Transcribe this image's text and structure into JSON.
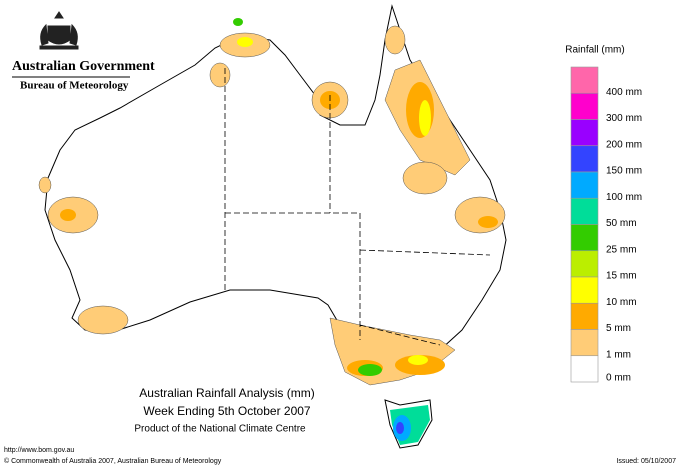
{
  "header": {
    "government": "Australian Government",
    "agency": "Bureau of Meteorology"
  },
  "legend": {
    "title": "Rainfall (mm)",
    "items": [
      {
        "label": "400 mm",
        "color": "#ff66aa"
      },
      {
        "label": "300 mm",
        "color": "#ff00cc"
      },
      {
        "label": "200 mm",
        "color": "#9900ff"
      },
      {
        "label": "150 mm",
        "color": "#3344ff"
      },
      {
        "label": "100 mm",
        "color": "#00aaff"
      },
      {
        "label": "50 mm",
        "color": "#00dd99"
      },
      {
        "label": "25 mm",
        "color": "#33cc00"
      },
      {
        "label": "15 mm",
        "color": "#bbee00"
      },
      {
        "label": "10 mm",
        "color": "#ffff00"
      },
      {
        "label": "5 mm",
        "color": "#ffaa00"
      },
      {
        "label": "1 mm",
        "color": "#ffcc77"
      },
      {
        "label": "0 mm",
        "color": "#ffffff"
      }
    ]
  },
  "caption": {
    "line1": "Australian Rainfall Analysis (mm)",
    "line2": "Week Ending 5th October 2007",
    "line3": "Product of the National Climate Centre"
  },
  "footer": {
    "url": "http://www.bom.gov.au",
    "copyright": "© Commonwealth of Australia 2007, Australian Bureau of Meteorology",
    "issued": "Issued: 05/10/2007"
  }
}
